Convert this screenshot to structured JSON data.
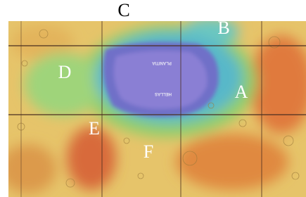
{
  "labels": [
    "A",
    "B",
    "C",
    "D",
    "E",
    "F"
  ],
  "map_text": {
    "basin": "HELLAS",
    "plain": "PLANITIA"
  }
}
